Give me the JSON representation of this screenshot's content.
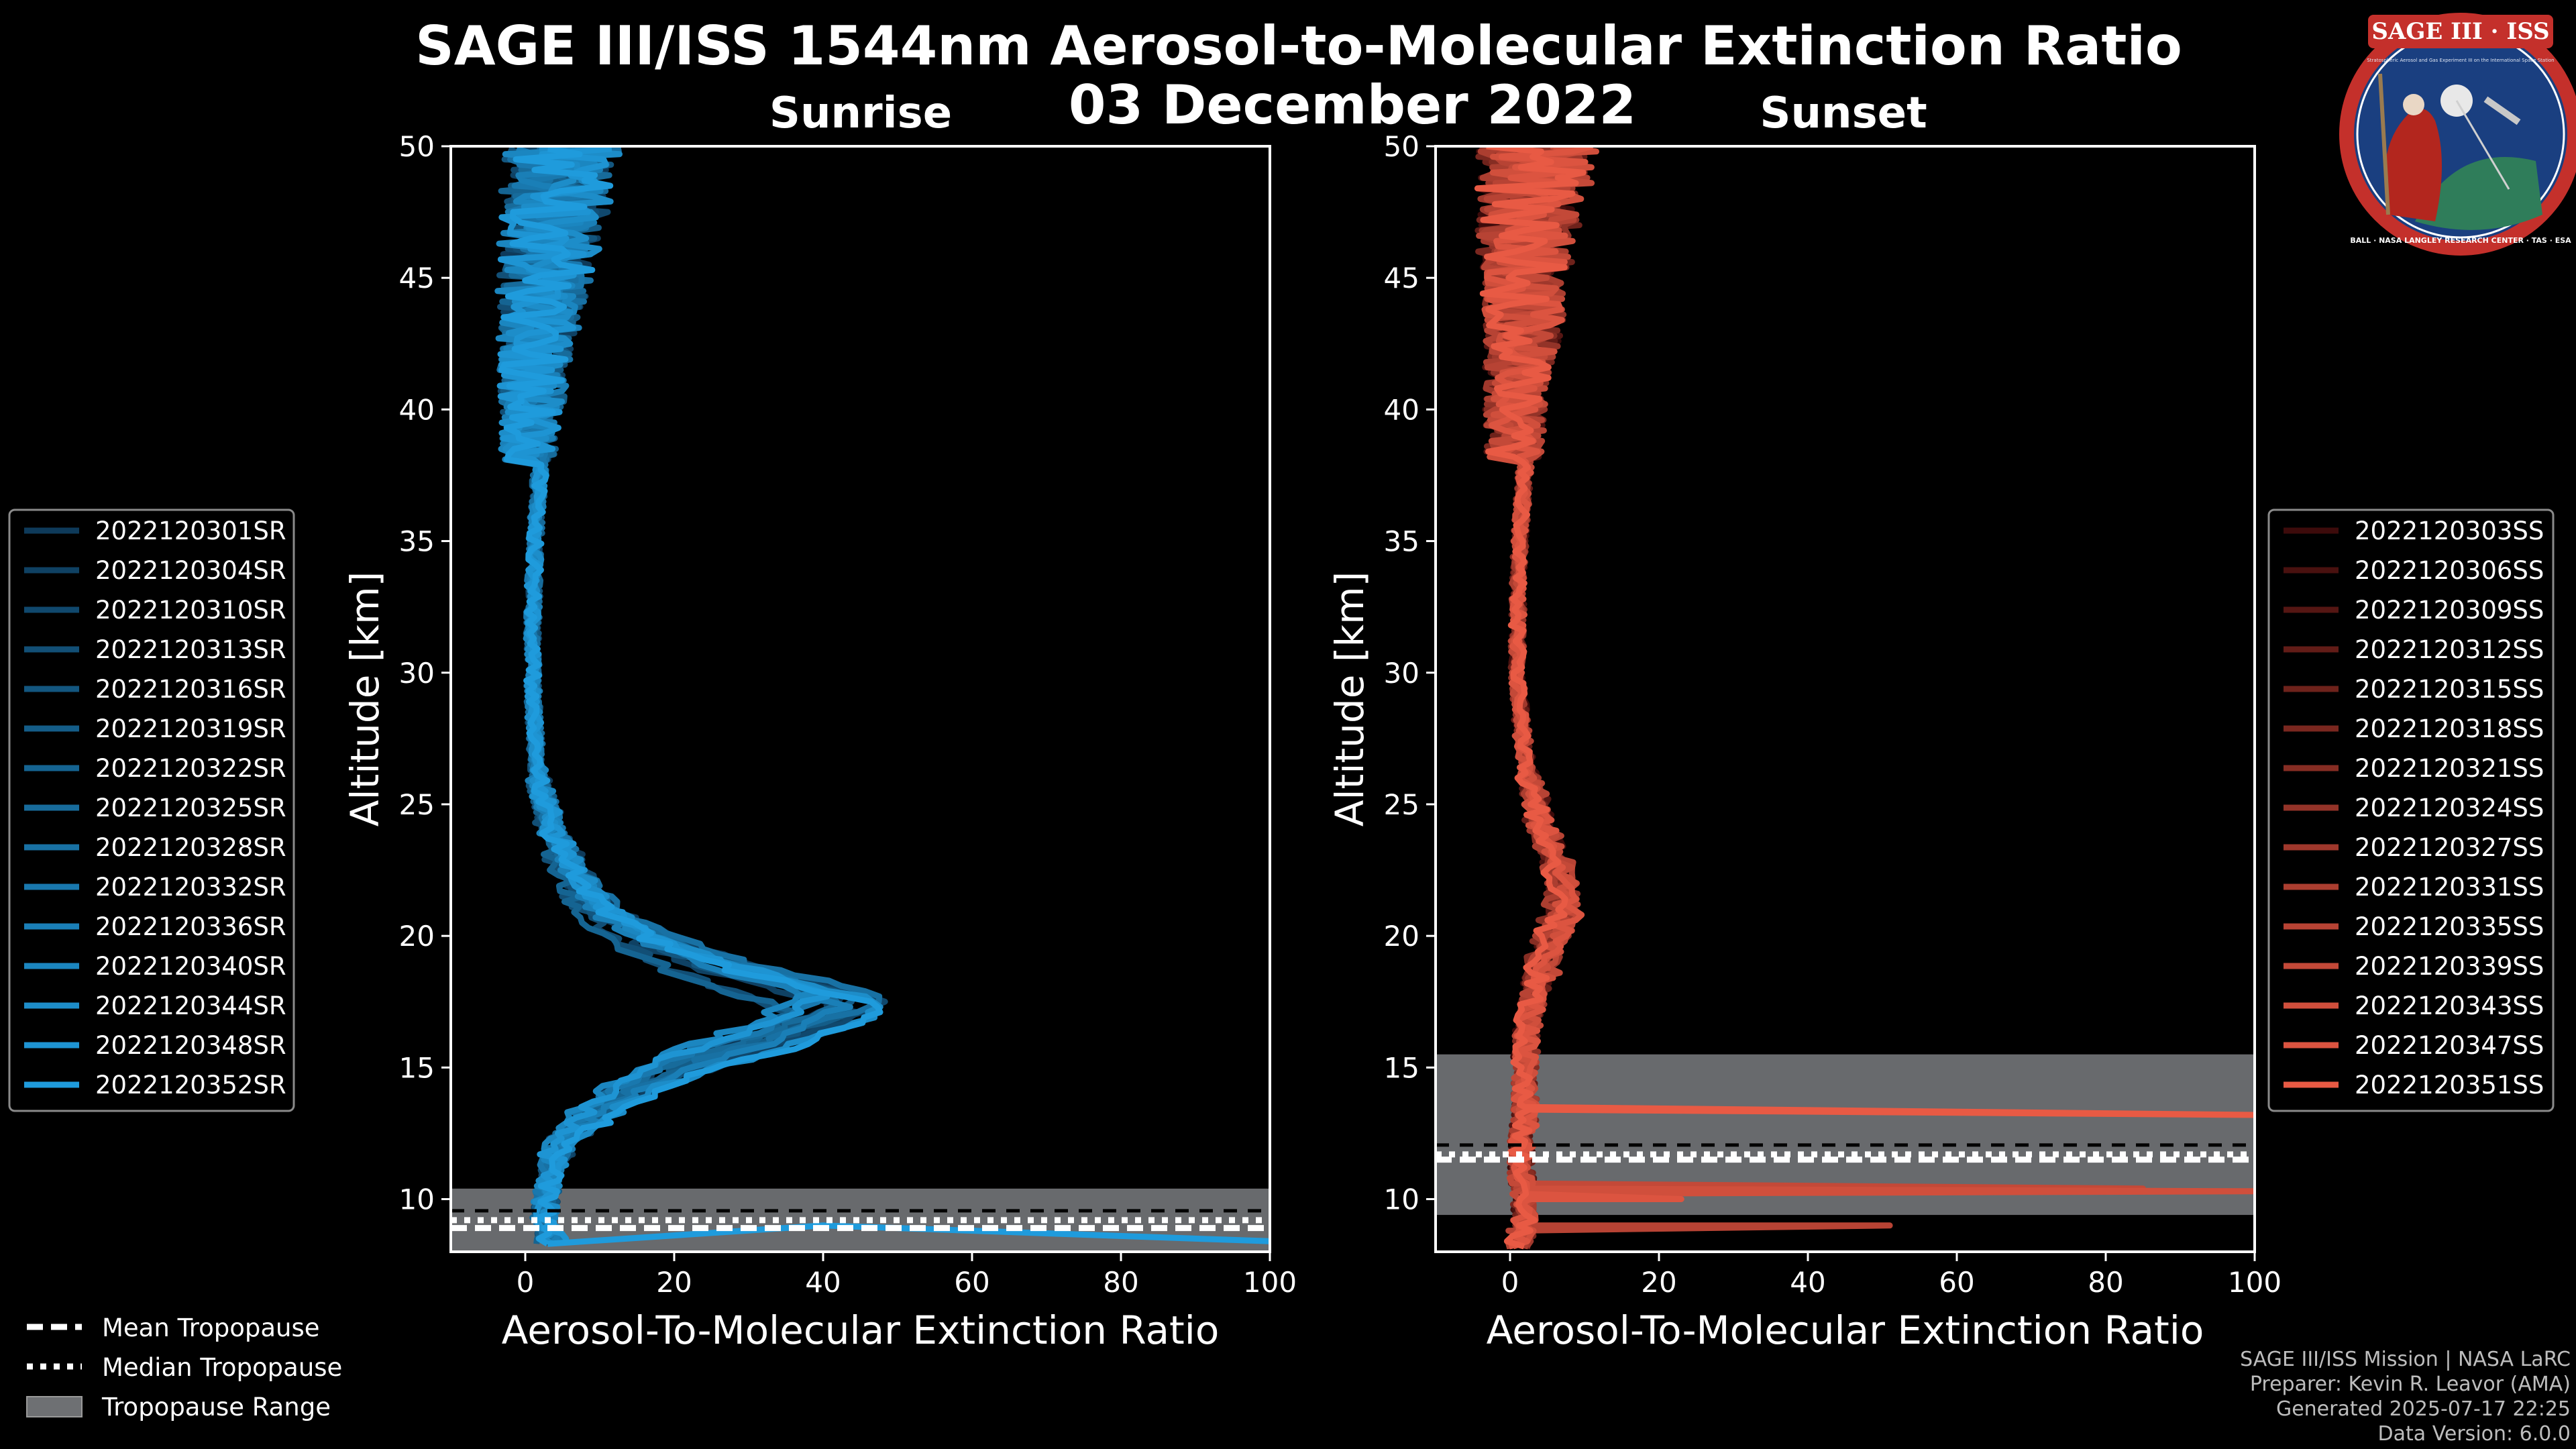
{
  "title": "SAGE III/ISS 1544nm Aerosol-to-Molecular Extinction Ratio",
  "date": "03 December 2022",
  "logo": {
    "name": "SAGE III · ISS",
    "subtitle": "Stratospheric Aerosol and Gas Experiment III on the International Space Station",
    "ring_text": "BALL · NASA LANGLEY RESEARCH CENTER · TAS · ESA"
  },
  "shared_legend": {
    "mean_tropopause": "Mean Tropopause",
    "median_tropopause": "Median Tropopause",
    "tropopause_range": "Tropopause Range"
  },
  "credits": {
    "mission": "SAGE III/ISS Mission | NASA LaRC",
    "preparer": "Preparer: Kevin R. Leavor (AMA)",
    "generated": "Generated 2025-07-17 22:25",
    "version": "Data Version: 6.0.0"
  },
  "chart_data": [
    {
      "type": "line",
      "title": "Sunrise",
      "xlabel": "Aerosol-To-Molecular Extinction Ratio",
      "ylabel": "Altitude [km]",
      "xlim": [
        -10,
        100
      ],
      "ylim": [
        8,
        50
      ],
      "xticks": [
        "0",
        "20",
        "40",
        "60",
        "80",
        "100"
      ],
      "yticks": [
        "10",
        "15",
        "20",
        "25",
        "30",
        "35",
        "40",
        "45",
        "50"
      ],
      "tropopause": {
        "range": [
          8.0,
          10.4
        ],
        "mean": 8.9,
        "median": 9.2
      },
      "colors": {
        "light": "#1f9bdc",
        "dark": "#0e3a5a"
      },
      "profile": {
        "altitude": [
          8.3,
          9,
          10,
          11,
          12,
          13,
          14,
          15,
          16,
          17,
          17.5,
          18,
          19,
          20,
          21,
          22,
          23,
          24,
          26,
          28,
          30,
          32,
          34,
          36,
          38,
          40,
          42,
          44,
          46,
          48,
          50
        ],
        "ratio": [
          4,
          2.5,
          2.8,
          3.5,
          5,
          9,
          14,
          22,
          34,
          43,
          46,
          40,
          26,
          17,
          11,
          8,
          6,
          3.5,
          1.8,
          1.2,
          1,
          1,
          1.2,
          1.5,
          2,
          2.5,
          3,
          4,
          5,
          6,
          7
        ]
      },
      "legend": [
        "2022120301SR",
        "2022120304SR",
        "2022120310SR",
        "2022120313SR",
        "2022120316SR",
        "2022120319SR",
        "2022120322SR",
        "2022120325SR",
        "2022120328SR",
        "2022120332SR",
        "2022120336SR",
        "2022120340SR",
        "2022120344SR",
        "2022120348SR",
        "2022120352SR"
      ]
    },
    {
      "type": "line",
      "title": "Sunset",
      "xlabel": "Aerosol-To-Molecular Extinction Ratio",
      "ylabel": "Altitude [km]",
      "xlim": [
        -10,
        100
      ],
      "ylim": [
        8,
        50
      ],
      "xticks": [
        "0",
        "20",
        "40",
        "60",
        "80",
        "100"
      ],
      "yticks": [
        "10",
        "15",
        "20",
        "25",
        "30",
        "35",
        "40",
        "45",
        "50"
      ],
      "tropopause": {
        "range": [
          9.4,
          15.5
        ],
        "mean": 11.5,
        "median": 11.7
      },
      "colors": {
        "light": "#e85a44",
        "dark": "#3d0b0b"
      },
      "profile": {
        "altitude": [
          8.2,
          9,
          10,
          11,
          12,
          13,
          14,
          15,
          16,
          17,
          18,
          19,
          20,
          21,
          22,
          23,
          24,
          25,
          26,
          28,
          30,
          32,
          34,
          36,
          38,
          40,
          42,
          44,
          46,
          48,
          50
        ],
        "ratio": [
          1,
          2,
          2,
          1.5,
          1.5,
          2,
          2,
          2,
          2.2,
          2.5,
          3.5,
          5,
          6.5,
          8,
          8,
          7,
          5,
          3.5,
          2.5,
          1.5,
          1,
          1,
          1.2,
          1.5,
          2,
          2.5,
          3,
          3.5,
          4,
          5,
          6
        ]
      },
      "spikes": [
        {
          "altitude": 9.0,
          "ratio": 51
        },
        {
          "altitude": 10.4,
          "ratio": 85
        },
        {
          "altitude": 10.3,
          "ratio": 100
        },
        {
          "altitude": 10.0,
          "ratio": 23
        },
        {
          "altitude_from": 13.5,
          "altitude_to": 13.2,
          "ratio": 100
        }
      ],
      "legend": [
        "2022120303SS",
        "2022120306SS",
        "2022120309SS",
        "2022120312SS",
        "2022120315SS",
        "2022120318SS",
        "2022120321SS",
        "2022120324SS",
        "2022120327SS",
        "2022120331SS",
        "2022120335SS",
        "2022120339SS",
        "2022120343SS",
        "2022120347SS",
        "2022120351SS"
      ]
    }
  ]
}
